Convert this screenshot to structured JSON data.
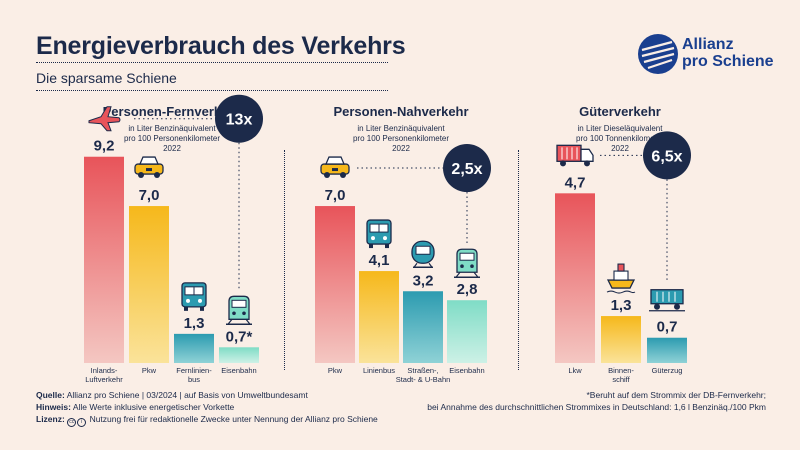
{
  "header": {
    "title": "Energieverbrauch des Verkehrs",
    "subtitle": "Die sparsame Schiene",
    "logo_line1": "Allianz",
    "logo_line2": "pro Schiene"
  },
  "colors": {
    "navy": "#1c2a4a",
    "background": "#faeee6",
    "red_top": "#e8545a",
    "red_bottom": "#f4c7c2",
    "yellow_top": "#f6b81b",
    "yellow_bottom": "#fae39a",
    "teal_top": "#2c9bb0",
    "teal_bottom": "#8fd2d6",
    "mint_top": "#7fdcc6",
    "mint_bottom": "#cdf1e6",
    "logo_blue": "#1a3f8f"
  },
  "chart_data": [
    {
      "type": "bar",
      "title": "Personen-Fernverkehr",
      "unit_lines": [
        "in Liter Benzinäquivalent",
        "pro 100 Personenkilometer",
        "2022"
      ],
      "categories": [
        "Inlands-\nLuftverkehr",
        "Pkw",
        "Fernlinien-\nbus",
        "Eisenbahn"
      ],
      "values": [
        9.2,
        7.0,
        1.3,
        0.7
      ],
      "value_labels": [
        "9,2",
        "7,0",
        "1,3",
        "0,7*"
      ],
      "icons": [
        "airplane-icon",
        "car-icon",
        "bus-icon",
        "train-icon"
      ],
      "colors": [
        "red",
        "yellow",
        "teal",
        "mint"
      ],
      "factor": "13x",
      "ylim": [
        0,
        9.5
      ]
    },
    {
      "type": "bar",
      "title": "Personen-Nahverkehr",
      "unit_lines": [
        "in Liter Benzinäquivalent",
        "pro 100 Personenkilometer",
        "2022"
      ],
      "categories": [
        "Pkw",
        "Linienbus",
        "Straßen-,\nStadt- & U-Bahn",
        "Eisenbahn"
      ],
      "values": [
        7.0,
        4.1,
        3.2,
        2.8
      ],
      "value_labels": [
        "7,0",
        "4,1",
        "3,2",
        "2,8"
      ],
      "icons": [
        "car-icon",
        "bus-icon",
        "tram-icon",
        "train-icon"
      ],
      "colors": [
        "red",
        "yellow",
        "teal",
        "mint"
      ],
      "factor": "2,5x",
      "ylim": [
        0,
        9.5
      ]
    },
    {
      "type": "bar",
      "title": "Güterverkehr",
      "unit_lines": [
        "in Liter Dieseläquivalent",
        "pro 100 Tonnenkilometer",
        "2022"
      ],
      "categories": [
        "Lkw",
        "Binnen-\nschiff",
        "Güterzug"
      ],
      "values": [
        4.7,
        1.3,
        0.7
      ],
      "value_labels": [
        "4,7",
        "1,3",
        "0,7"
      ],
      "icons": [
        "truck-icon",
        "ship-icon",
        "freight-wagon-icon"
      ],
      "colors": [
        "red",
        "yellow",
        "teal"
      ],
      "factor": "6,5x",
      "ylim": [
        0,
        5.9
      ]
    }
  ],
  "footer": {
    "source_label": "Quelle:",
    "source_text": "Allianz pro Schiene | 03/2024 | auf Basis von Umweltbundesamt",
    "note_label": "Hinweis:",
    "note_text": "Alle Werte inklusive energetischer Vorkette",
    "license_label": "Lizenz:",
    "license_text": "Nutzung frei für redaktionelle Zwecke unter Nennung der Allianz pro Schiene",
    "footnote_line1": "*Beruht auf dem Strommix der DB-Fernverkehr;",
    "footnote_line2": "bei Annahme des durchschnittlichen Strommixes in Deutschland: 1,6 l Benzinäq./100 Pkm"
  }
}
